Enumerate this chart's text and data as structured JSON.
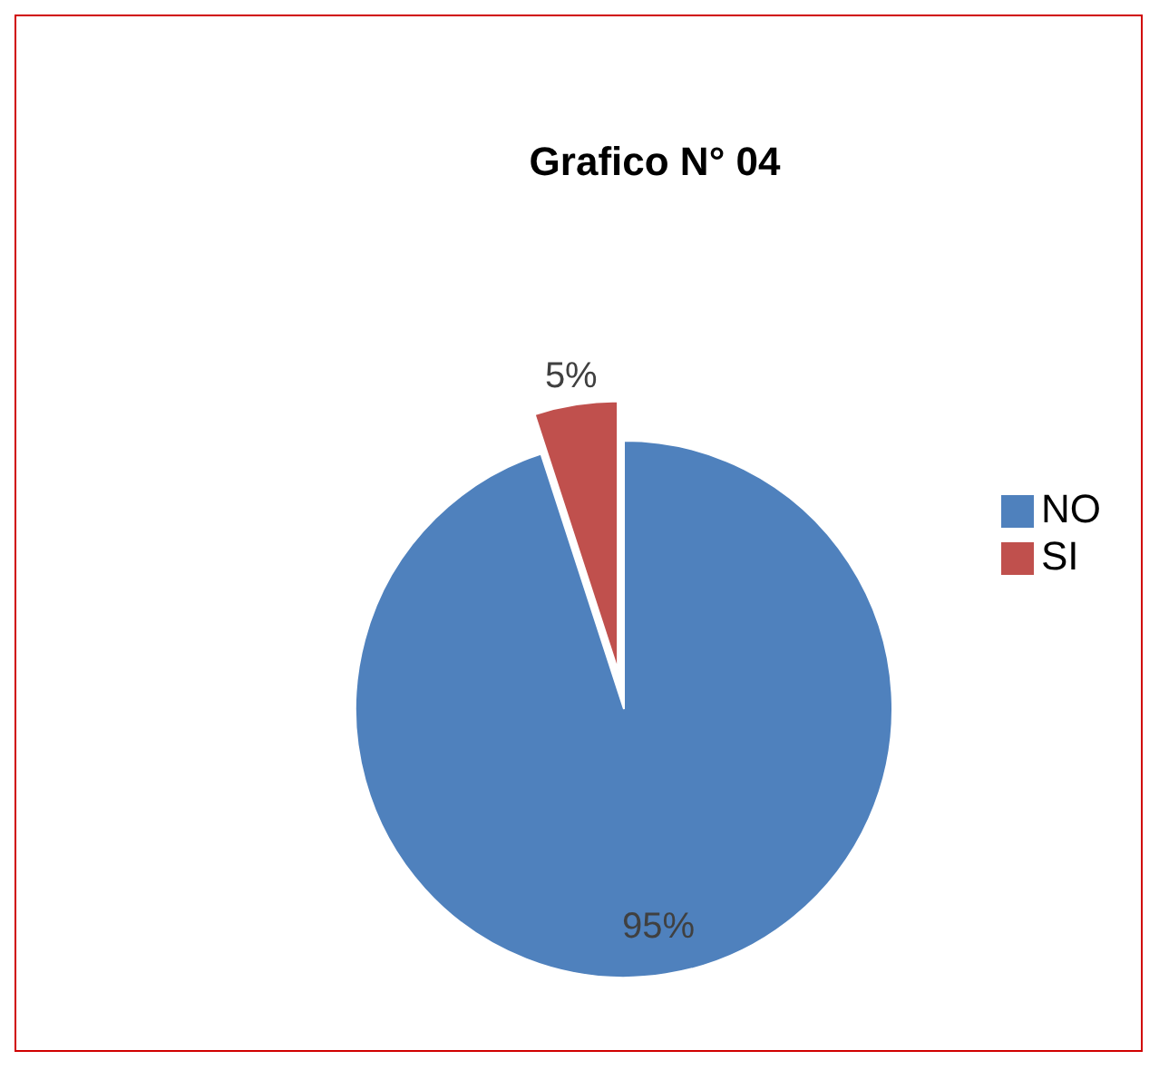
{
  "chart_data": {
    "type": "pie",
    "title": "Grafico N° 04",
    "categories": [
      "SI",
      "NO"
    ],
    "values": [
      5,
      95
    ],
    "colors": [
      "#c0504d",
      "#4f81bd"
    ],
    "value_labels": [
      "5%",
      "95%"
    ],
    "legend": "right"
  }
}
